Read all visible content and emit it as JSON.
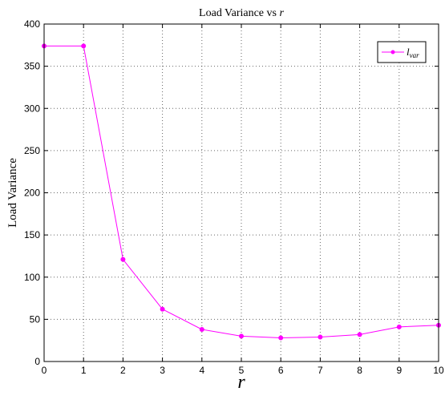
{
  "chart_data": {
    "type": "line",
    "title": "Load Variance vs r",
    "xlabel": "r",
    "ylabel": "Load Variance",
    "xlim": [
      0,
      10
    ],
    "ylim": [
      0,
      400
    ],
    "x_ticks": [
      0,
      1,
      2,
      3,
      4,
      5,
      6,
      7,
      8,
      9,
      10
    ],
    "y_ticks": [
      0,
      50,
      100,
      150,
      200,
      250,
      300,
      350,
      400
    ],
    "grid": true,
    "legend_position": "top-right",
    "series": [
      {
        "name": "l_var",
        "color": "#ff00ff",
        "marker": "dot",
        "x": [
          0,
          1,
          2,
          3,
          4,
          5,
          6,
          7,
          8,
          9,
          10
        ],
        "values": [
          374,
          374,
          121,
          62,
          38,
          30,
          28,
          29,
          32,
          41,
          43
        ]
      }
    ]
  }
}
